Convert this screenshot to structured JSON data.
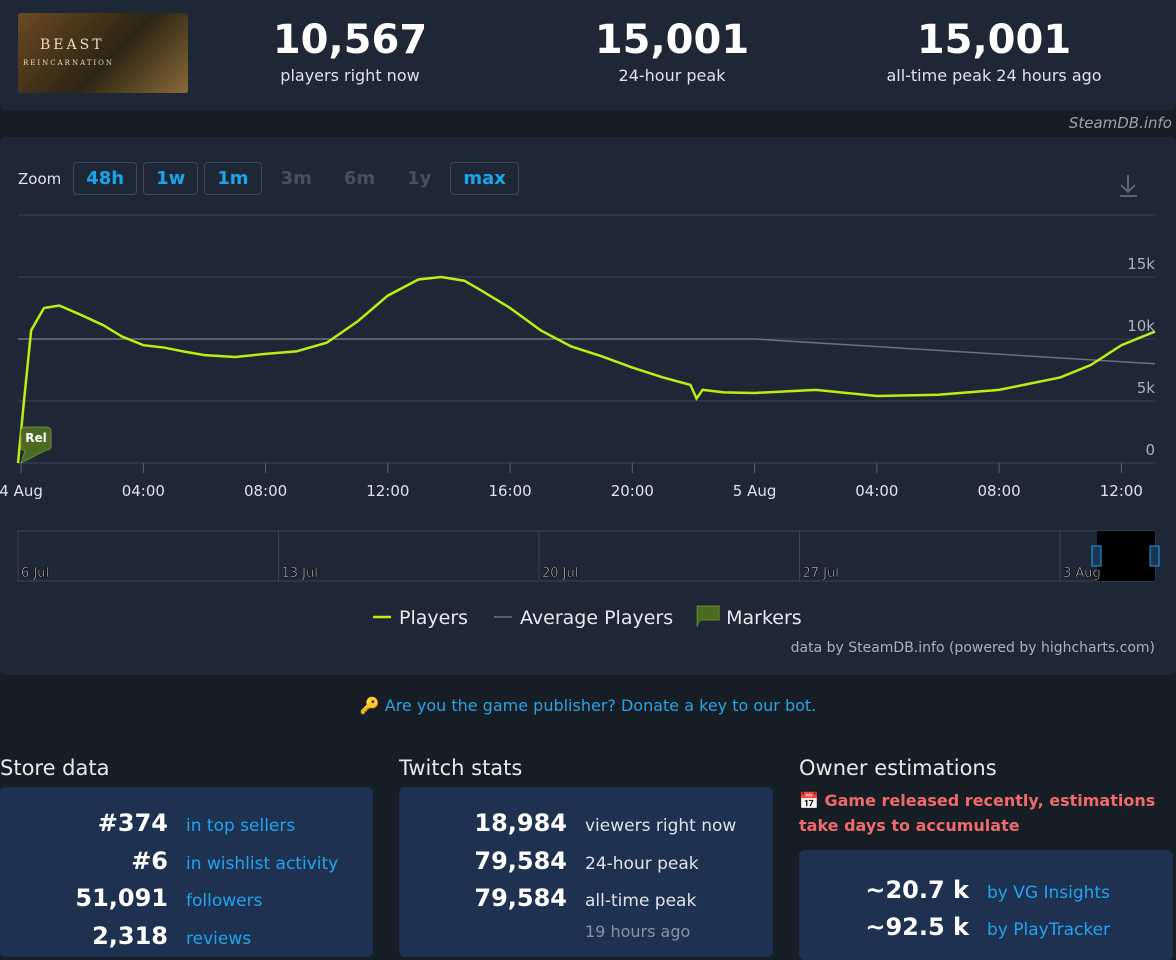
{
  "header": {
    "logo": [
      "BEAST",
      "REINCARNATION"
    ],
    "stats": [
      {
        "value": "10,567",
        "label": "players right now"
      },
      {
        "value": "15,001",
        "label": "24-hour peak"
      },
      {
        "value": "15,001",
        "label": "all-time peak 24 hours ago"
      }
    ]
  },
  "watermark": "SteamDB.info",
  "zoom": {
    "label": "Zoom",
    "buttons": [
      "48h",
      "1w",
      "1m",
      "3m",
      "6m",
      "1y",
      "max"
    ]
  },
  "chart_data": {
    "type": "line",
    "xlim": [
      -0.1,
      37.1
    ],
    "xticks": [
      {
        "value": 0,
        "label": "4 Aug"
      },
      {
        "value": 4,
        "label": "04:00"
      },
      {
        "value": 8,
        "label": "08:00"
      },
      {
        "value": 12,
        "label": "12:00"
      },
      {
        "value": 16,
        "label": "16:00"
      },
      {
        "value": 20,
        "label": "20:00"
      },
      {
        "value": 24,
        "label": "5 Aug"
      },
      {
        "value": 28,
        "label": "04:00"
      },
      {
        "value": 32,
        "label": "08:00"
      },
      {
        "value": 36,
        "label": "12:00"
      }
    ],
    "ylim": [
      0,
      20000
    ],
    "yticks": [
      0,
      {
        "value": 5000,
        "label": "5k"
      },
      {
        "value": 10000,
        "label": "10k"
      },
      {
        "value": 15000,
        "label": "15k"
      }
    ],
    "grid": true,
    "series": [
      {
        "name": "Players",
        "color": "#beee11",
        "x": [
          -0.1,
          0.1,
          0.33,
          0.75,
          1.25,
          2,
          2.7,
          3.3,
          4,
          4.7,
          5.3,
          6,
          7,
          8,
          9,
          10,
          11,
          12,
          13,
          13.75,
          14.5,
          15,
          16,
          17,
          18,
          19,
          20,
          21,
          21.9,
          22.1,
          22.3,
          23,
          24,
          26,
          28,
          30,
          32,
          34,
          35,
          36,
          37.1
        ],
        "values": [
          0,
          5100,
          10700,
          12500,
          12700,
          11900,
          11100,
          10200,
          9500,
          9300,
          9000,
          8700,
          8550,
          8800,
          9000,
          9700,
          11400,
          13500,
          14800,
          15000,
          14700,
          14000,
          12500,
          10700,
          9400,
          8600,
          7700,
          6900,
          6300,
          5200,
          5900,
          5700,
          5650,
          5900,
          5400,
          5500,
          5900,
          6900,
          7900,
          9500,
          10600
        ]
      },
      {
        "name": "Average Players",
        "color": "#6b7280",
        "x": [
          -0.1,
          24,
          37.1
        ],
        "values": [
          10000,
          10000,
          8000
        ]
      }
    ],
    "markers": {
      "name": "Markers",
      "color": "#4c6b22",
      "points": [
        {
          "x": 0,
          "label": "Rel"
        }
      ]
    },
    "navigator": [
      "6 Jul",
      "13 Jul",
      "20 Jul",
      "27 Jul",
      "3 Aug"
    ],
    "credits": "data by SteamDB.info (powered by highcharts.com)"
  },
  "publisher_link": "Are you the game publisher? Donate a key to our bot.",
  "store": {
    "title": "Store data",
    "rows": [
      [
        "#374",
        "in top sellers"
      ],
      [
        "#6",
        "in wishlist activity"
      ],
      [
        "51,091",
        "followers"
      ],
      [
        "2,318",
        "reviews"
      ]
    ]
  },
  "twitch": {
    "title": "Twitch stats",
    "rows": [
      [
        "18,984",
        "viewers right now"
      ],
      [
        "79,584",
        "24-hour peak"
      ],
      [
        "79,584",
        "all-time peak"
      ]
    ],
    "note": "19 hours ago"
  },
  "owners": {
    "title": "Owner estimations",
    "warning": "Game released recently, estimations take days to accumulate",
    "rows": [
      [
        "~20.7 k",
        "by VG Insights"
      ],
      [
        "~92.5 k",
        "by PlayTracker"
      ]
    ]
  }
}
